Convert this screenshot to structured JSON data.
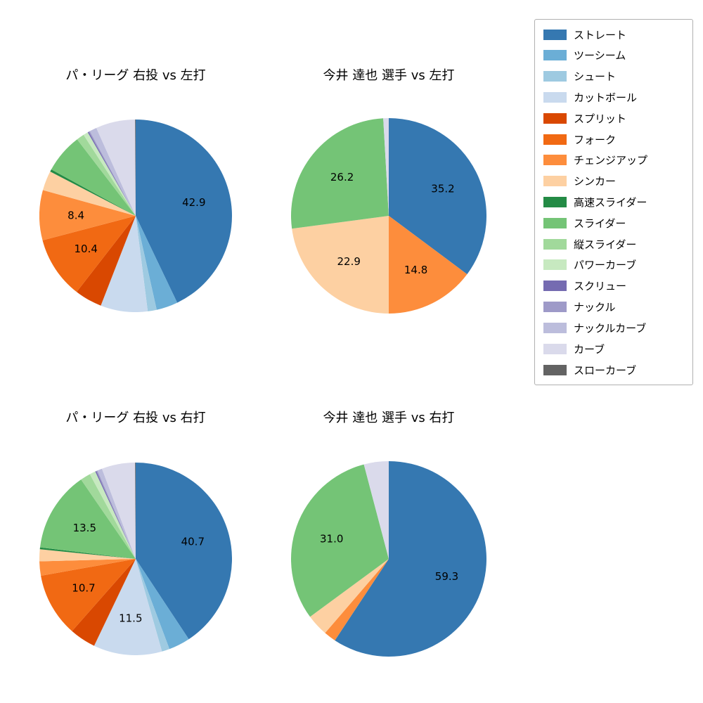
{
  "background": "#ffffff",
  "legend": {
    "items": [
      {
        "label": "ストレート",
        "color": "#3578b1"
      },
      {
        "label": "ツーシーム",
        "color": "#6baed6"
      },
      {
        "label": "シュート",
        "color": "#9ecae1"
      },
      {
        "label": "カットボール",
        "color": "#c9daee"
      },
      {
        "label": "スプリット",
        "color": "#d94801"
      },
      {
        "label": "フォーク",
        "color": "#f16913"
      },
      {
        "label": "チェンジアップ",
        "color": "#fd8d3c"
      },
      {
        "label": "シンカー",
        "color": "#fdd0a2"
      },
      {
        "label": "高速スライダー",
        "color": "#238b45"
      },
      {
        "label": "スライダー",
        "color": "#74c476"
      },
      {
        "label": "縦スライダー",
        "color": "#a1d99b"
      },
      {
        "label": "パワーカーブ",
        "color": "#c7e9c0"
      },
      {
        "label": "スクリュー",
        "color": "#756bb1"
      },
      {
        "label": "ナックル",
        "color": "#9e9ac8"
      },
      {
        "label": "ナックルカーブ",
        "color": "#bcbddc"
      },
      {
        "label": "カーブ",
        "color": "#dadaeb"
      },
      {
        "label": "スローカーブ",
        "color": "#636363"
      }
    ]
  },
  "chart_data": [
    {
      "type": "pie",
      "title": "パ・リーグ 右投 vs 左打",
      "start_angle_deg": 0,
      "direction": "clockwise",
      "slices": [
        {
          "name": "ストレート",
          "value": 42.9,
          "label": "42.9"
        },
        {
          "name": "ツーシーム",
          "value": 3.6
        },
        {
          "name": "シュート",
          "value": 1.5
        },
        {
          "name": "カットボール",
          "value": 7.9
        },
        {
          "name": "スプリット",
          "value": 4.6
        },
        {
          "name": "フォーク",
          "value": 10.4,
          "label": "10.4"
        },
        {
          "name": "チェンジアップ",
          "value": 8.4,
          "label": "8.4"
        },
        {
          "name": "シンカー",
          "value": 3.3
        },
        {
          "name": "高速スライダー",
          "value": 0.4
        },
        {
          "name": "スライダー",
          "value": 6.6
        },
        {
          "name": "縦スライダー",
          "value": 1.3
        },
        {
          "name": "パワーカーブ",
          "value": 0.8
        },
        {
          "name": "スクリュー",
          "value": 0.2
        },
        {
          "name": "ナックル",
          "value": 0.2
        },
        {
          "name": "ナックルカーブ",
          "value": 1.2
        },
        {
          "name": "カーブ",
          "value": 6.6
        },
        {
          "name": "スローカーブ",
          "value": 0.1
        }
      ]
    },
    {
      "type": "pie",
      "title": "今井 達也 選手 vs 左打",
      "start_angle_deg": 0,
      "direction": "clockwise",
      "slices": [
        {
          "name": "ストレート",
          "value": 35.2,
          "label": "35.2"
        },
        {
          "name": "チェンジアップ",
          "value": 14.8,
          "label": "14.8"
        },
        {
          "name": "シンカー",
          "value": 22.9,
          "label": "22.9"
        },
        {
          "name": "スライダー",
          "value": 26.2,
          "label": "26.2"
        },
        {
          "name": "カーブ",
          "value": 0.9
        }
      ]
    },
    {
      "type": "pie",
      "title": "パ・リーグ 右投 vs 右打",
      "start_angle_deg": 0,
      "direction": "clockwise",
      "slices": [
        {
          "name": "ストレート",
          "value": 40.7,
          "label": "40.7"
        },
        {
          "name": "ツーシーム",
          "value": 3.6
        },
        {
          "name": "シュート",
          "value": 1.3
        },
        {
          "name": "カットボール",
          "value": 11.5,
          "label": "11.5"
        },
        {
          "name": "スプリット",
          "value": 4.4
        },
        {
          "name": "フォーク",
          "value": 10.7,
          "label": "10.7"
        },
        {
          "name": "チェンジアップ",
          "value": 2.4
        },
        {
          "name": "シンカー",
          "value": 2.0
        },
        {
          "name": "高速スライダー",
          "value": 0.3
        },
        {
          "name": "スライダー",
          "value": 13.5,
          "label": "13.5"
        },
        {
          "name": "縦スライダー",
          "value": 1.7
        },
        {
          "name": "パワーカーブ",
          "value": 1.0
        },
        {
          "name": "スクリュー",
          "value": 0.2
        },
        {
          "name": "ナックル",
          "value": 0.2
        },
        {
          "name": "ナックルカーブ",
          "value": 0.8
        },
        {
          "name": "カーブ",
          "value": 5.6
        },
        {
          "name": "スローカーブ",
          "value": 0.1
        }
      ]
    },
    {
      "type": "pie",
      "title": "今井 達也 選手 vs 右打",
      "start_angle_deg": 0,
      "direction": "clockwise",
      "slices": [
        {
          "name": "ストレート",
          "value": 59.3,
          "label": "59.3"
        },
        {
          "name": "チェンジアップ",
          "value": 2.0
        },
        {
          "name": "シンカー",
          "value": 3.6
        },
        {
          "name": "スライダー",
          "value": 31.0,
          "label": "31.0"
        },
        {
          "name": "カーブ",
          "value": 4.1
        }
      ]
    }
  ]
}
